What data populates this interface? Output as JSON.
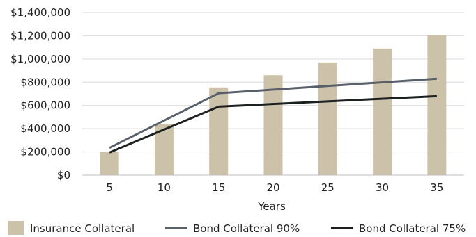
{
  "chart_data": {
    "type": "bar",
    "categories": [
      "5",
      "10",
      "15",
      "20",
      "25",
      "30",
      "35"
    ],
    "xlabel": "Years",
    "ylabel": "",
    "title": "",
    "ylim": [
      0,
      1400000
    ],
    "yticks": [
      0,
      200000,
      400000,
      600000,
      800000,
      1000000,
      1200000,
      1400000
    ],
    "ytick_labels": [
      "$0",
      "$200,000",
      "$400,000",
      "$600,000",
      "$800,000",
      "$1,000,000",
      "$1,200,000",
      "$1,400,000"
    ],
    "grid": true,
    "legend_position": "bottom",
    "series": [
      {
        "name": "Insurance Collateral",
        "kind": "bar",
        "color": "#cbc2a9",
        "values": [
          200000,
          440000,
          755000,
          860000,
          970000,
          1090000,
          1205000
        ]
      },
      {
        "name": "Bond Collateral 90%",
        "kind": "line",
        "color": "#59606a",
        "values": [
          235000,
          null,
          705000,
          null,
          null,
          null,
          830000
        ]
      },
      {
        "name": "Bond Collateral 75%",
        "kind": "line",
        "color": "#1c2020",
        "values": [
          195000,
          null,
          590000,
          null,
          null,
          null,
          680000
        ]
      }
    ]
  }
}
